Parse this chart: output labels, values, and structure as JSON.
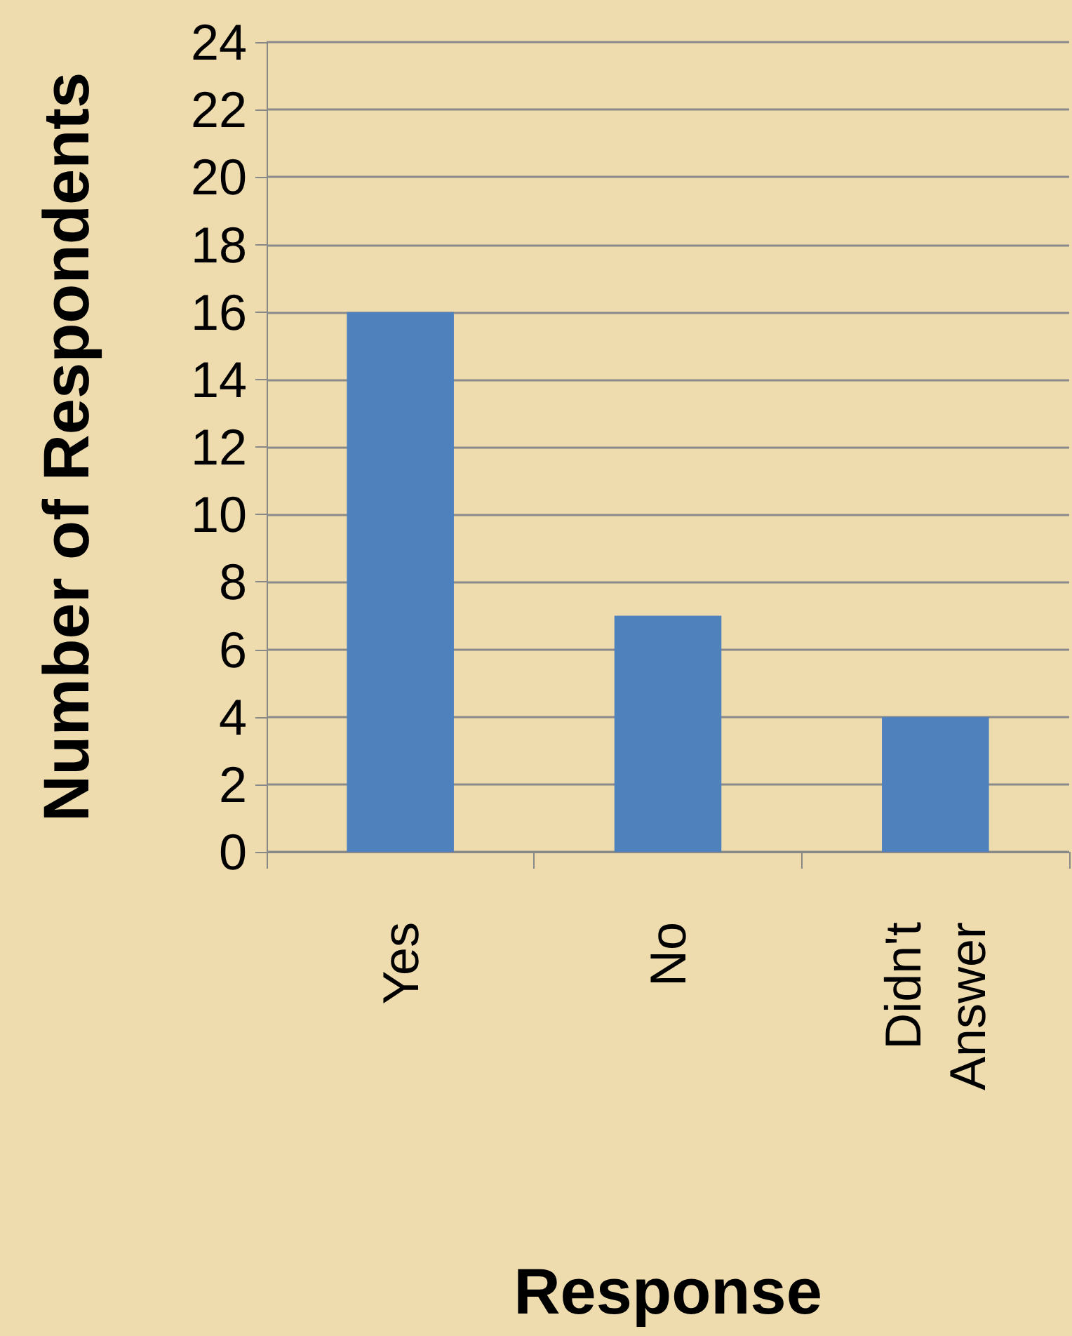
{
  "chart_data": {
    "type": "bar",
    "xlabel": "Response",
    "ylabel": "Number of Respondents",
    "categories": [
      "Yes",
      "No",
      "Didn't Answer"
    ],
    "values": [
      16,
      7,
      4
    ],
    "color": "#4f81bd",
    "ylim": [
      0,
      24
    ],
    "yticks": [
      0,
      2,
      4,
      6,
      8,
      10,
      12,
      14,
      16,
      18,
      20,
      22,
      24
    ],
    "grid": "y"
  }
}
